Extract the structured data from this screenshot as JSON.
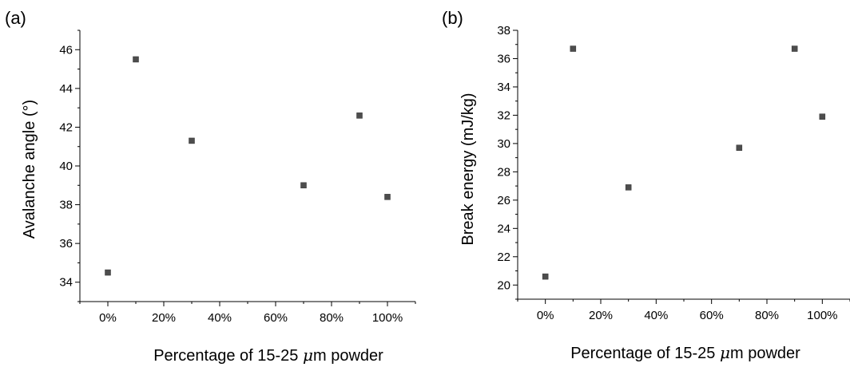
{
  "chart_data": [
    {
      "type": "scatter",
      "panel": "(a)",
      "title": "",
      "xlabel_prefix": "Percentage of 15-25 ",
      "xlabel_mu": "μ",
      "xlabel_suffix": "m powder",
      "ylabel": "Avalanche angle (°)",
      "xlim": [
        -0.1,
        1.1
      ],
      "ylim": [
        33,
        47
      ],
      "x_ticks": [
        0,
        0.2,
        0.4,
        0.6,
        0.8,
        1.0
      ],
      "x_tick_labels": [
        "0%",
        "20%",
        "40%",
        "60%",
        "80%",
        "100%"
      ],
      "y_ticks": [
        34,
        36,
        38,
        40,
        42,
        44,
        46
      ],
      "y_tick_labels": [
        "34",
        "36",
        "38",
        "40",
        "42",
        "44",
        "46"
      ],
      "series": [
        {
          "x": [
            0,
            0.1,
            0.3,
            0.7,
            0.9,
            1.0
          ],
          "y": [
            34.5,
            45.5,
            41.3,
            39.0,
            42.6,
            38.4
          ]
        }
      ],
      "color": "#4d4d4d"
    },
    {
      "type": "scatter",
      "panel": "(b)",
      "title": "",
      "xlabel_prefix": "Percentage of 15-25 ",
      "xlabel_mu": "μ",
      "xlabel_suffix": "m powder",
      "ylabel": "Break energy (mJ/kg)",
      "xlim": [
        -0.1,
        1.1
      ],
      "ylim": [
        19,
        38
      ],
      "x_ticks": [
        0,
        0.2,
        0.4,
        0.6,
        0.8,
        1.0
      ],
      "x_tick_labels": [
        "0%",
        "20%",
        "40%",
        "60%",
        "80%",
        "100%"
      ],
      "y_ticks": [
        20,
        22,
        24,
        26,
        28,
        30,
        32,
        34,
        36,
        38
      ],
      "y_tick_labels": [
        "20",
        "22",
        "24",
        "26",
        "28",
        "30",
        "32",
        "34",
        "36",
        "38"
      ],
      "series": [
        {
          "x": [
            0,
            0.1,
            0.3,
            0.7,
            0.9,
            1.0
          ],
          "y": [
            20.6,
            36.7,
            26.9,
            29.7,
            36.7,
            31.9
          ]
        }
      ],
      "color": "#4d4d4d"
    }
  ]
}
